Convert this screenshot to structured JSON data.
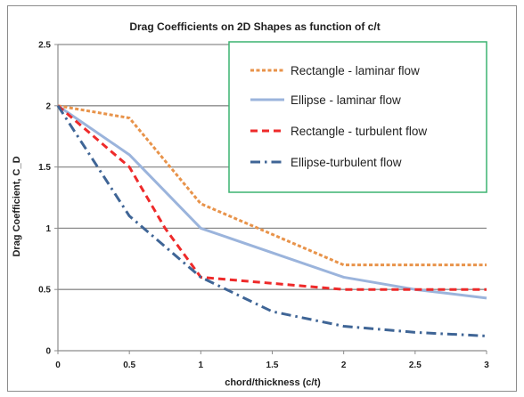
{
  "chart_data": {
    "type": "line",
    "title": "Drag Coefficients on 2D Shapes as function of c/t",
    "xlabel": "chord/thickness (c/t)",
    "ylabel": "Drag Coefficient, C_D",
    "xlim": [
      0,
      3
    ],
    "ylim": [
      0,
      2.5
    ],
    "x_ticks": [
      "0",
      "0.5",
      "1",
      "1.5",
      "2",
      "2.5",
      "3"
    ],
    "y_ticks": [
      "0",
      "0.5",
      "1",
      "1.5",
      "2",
      "2.5"
    ],
    "grid": "horizontal",
    "legend_position": "top-right",
    "series": [
      {
        "name": "Rectangle - laminar flow",
        "color": "#e8934a",
        "dash": "dotted",
        "points": [
          [
            0,
            2.0
          ],
          [
            0.5,
            1.9
          ],
          [
            1.0,
            1.2
          ],
          [
            2.0,
            0.7
          ],
          [
            3.0,
            0.7
          ]
        ]
      },
      {
        "name": "Ellipse - laminar flow",
        "color": "#9bb4dc",
        "dash": "solid",
        "points": [
          [
            0,
            2.0
          ],
          [
            0.5,
            1.6
          ],
          [
            1.0,
            1.0
          ],
          [
            1.5,
            0.8
          ],
          [
            2.0,
            0.6
          ],
          [
            2.5,
            0.5
          ],
          [
            3.0,
            0.43
          ]
        ]
      },
      {
        "name": "Rectangle - turbulent flow",
        "color": "#ee2a2a",
        "dash": "dashed",
        "points": [
          [
            0,
            2.0
          ],
          [
            0.5,
            1.5
          ],
          [
            0.75,
            1.0
          ],
          [
            1.0,
            0.6
          ],
          [
            1.5,
            0.55
          ],
          [
            2.0,
            0.5
          ],
          [
            3.0,
            0.5
          ]
        ]
      },
      {
        "name": "Ellipse-turbulent flow",
        "color": "#3f6596",
        "dash": "dash-dot",
        "points": [
          [
            0,
            2.0
          ],
          [
            0.25,
            1.55
          ],
          [
            0.5,
            1.1
          ],
          [
            1.0,
            0.6
          ],
          [
            1.5,
            0.32
          ],
          [
            2.0,
            0.2
          ],
          [
            2.5,
            0.15
          ],
          [
            3.0,
            0.12
          ]
        ]
      }
    ]
  },
  "colors": {
    "axis": "#8c8c8c",
    "grid": "#8c8c8c",
    "legend_border": "#3cb371"
  }
}
